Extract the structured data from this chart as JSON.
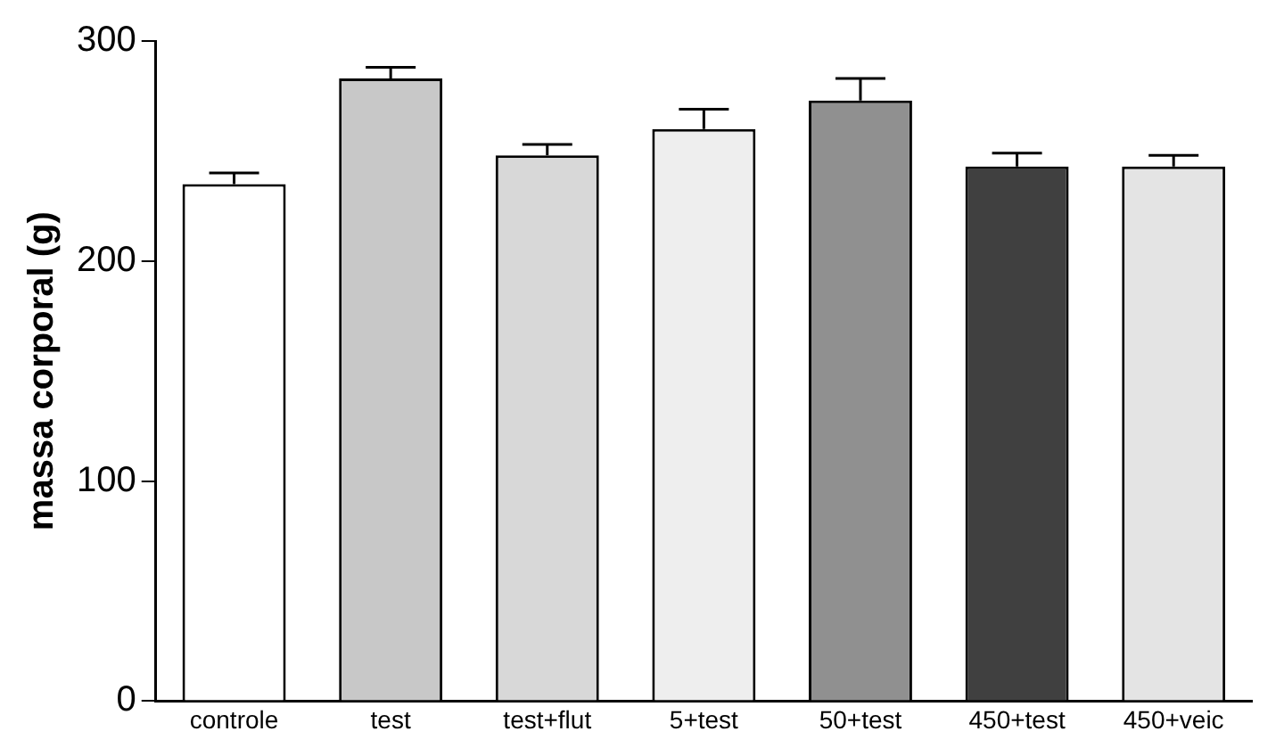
{
  "chart_data": {
    "type": "bar",
    "ylabel": "massa corporal (g)",
    "categories": [
      "controle",
      "test",
      "test+flut",
      "5+test",
      "50+test",
      "450+test",
      "450+veic"
    ],
    "values": [
      235,
      283,
      248,
      260,
      273,
      243,
      243
    ],
    "errors": [
      5,
      5,
      5,
      9,
      10,
      6,
      5
    ],
    "colors": [
      "#ffffff",
      "#c8c8c8",
      "#d8d8d8",
      "#eeeeee",
      "#909090",
      "#404040",
      "#e4e4e4"
    ],
    "ylim": [
      0,
      300
    ],
    "yticks": [
      0,
      100,
      200,
      300
    ],
    "grid": false,
    "legend": false
  }
}
